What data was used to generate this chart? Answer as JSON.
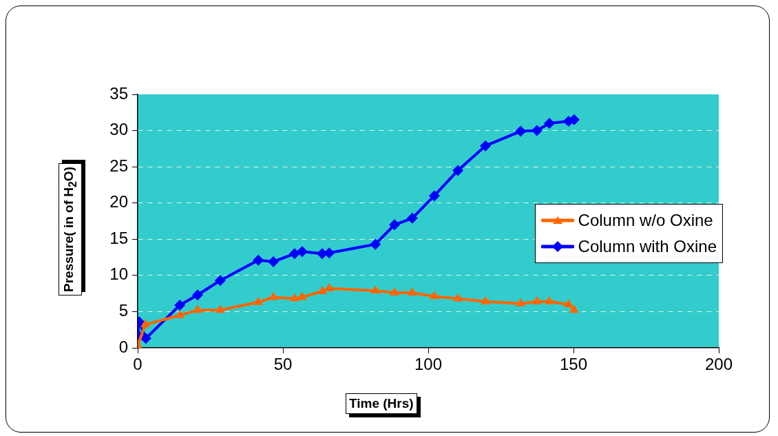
{
  "chart_data": {
    "type": "line",
    "xlabel": "Time (Hrs)",
    "ylabel": "Pressure( in of H$_{2}$O)",
    "xlim": [
      0,
      200
    ],
    "xticks": [
      0,
      50,
      100,
      150,
      200
    ],
    "ylim": [
      0,
      35
    ],
    "yticks": [
      0,
      5,
      10,
      15,
      20,
      25,
      30,
      35
    ],
    "grid": "y",
    "legend": "right",
    "line_style": "solid",
    "series": [
      {
        "name": "Column w/o Oxine",
        "color": "#ff6600",
        "marker": "triangle",
        "x": [
          0,
          2.6,
          14.5,
          20.6,
          28.4,
          41.5,
          46.7,
          54,
          56.6,
          63.5,
          65.9,
          81.8,
          88.4,
          94.5,
          102.1,
          110.2,
          119.7,
          131.8,
          137.4,
          141.7,
          148.3,
          150.2
        ],
        "values": [
          0.3,
          3.2,
          4.5,
          5.2,
          5.2,
          6.3,
          7.0,
          6.8,
          7.0,
          7.8,
          8.2,
          7.9,
          7.6,
          7.6,
          7.1,
          6.8,
          6.4,
          6.1,
          6.4,
          6.4,
          6.0,
          5.2
        ]
      },
      {
        "name": "Column with Oxine",
        "color": "#0000ff",
        "marker": "diamond",
        "x": [
          0,
          0.5,
          2.8,
          14.5,
          20.6,
          28.4,
          41.5,
          46.7,
          54,
          56.6,
          63.5,
          65.9,
          81.8,
          88.4,
          94.5,
          102.1,
          110.2,
          119.7,
          131.8,
          137.4,
          141.7,
          148.3,
          150.2
        ],
        "values": [
          1.8,
          3.6,
          1.3,
          5.9,
          7.3,
          9.3,
          12.1,
          11.9,
          13.0,
          13.3,
          13.0,
          13.1,
          14.3,
          17.0,
          17.9,
          21.0,
          24.5,
          27.9,
          29.9,
          30.0,
          31.0,
          31.3,
          31.5
        ]
      }
    ]
  }
}
